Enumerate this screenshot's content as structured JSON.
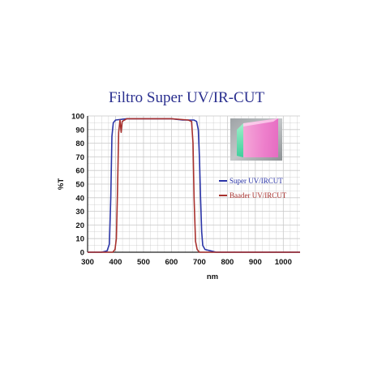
{
  "chart_data": {
    "type": "line",
    "title": "Filtro Super UV/IR-CUT",
    "xlabel": "nm",
    "ylabel": "%T",
    "xlim": [
      300,
      1060
    ],
    "ylim": [
      0,
      100
    ],
    "xticks": [
      300,
      400,
      500,
      600,
      700,
      800,
      900,
      1000
    ],
    "yticks": [
      0,
      10,
      20,
      30,
      40,
      50,
      60,
      70,
      80,
      90,
      100
    ],
    "grid": true,
    "legend_position": "right",
    "series": [
      {
        "name": "Super UV/IRCUT",
        "color": "#2b35a8",
        "points": [
          [
            300,
            0
          ],
          [
            350,
            0
          ],
          [
            370,
            1
          ],
          [
            378,
            6
          ],
          [
            383,
            40
          ],
          [
            387,
            85
          ],
          [
            392,
            95
          ],
          [
            400,
            97
          ],
          [
            440,
            98
          ],
          [
            500,
            98
          ],
          [
            560,
            98
          ],
          [
            600,
            98
          ],
          [
            640,
            97
          ],
          [
            680,
            97
          ],
          [
            690,
            96
          ],
          [
            696,
            90
          ],
          [
            700,
            70
          ],
          [
            704,
            40
          ],
          [
            708,
            15
          ],
          [
            712,
            5
          ],
          [
            720,
            2
          ],
          [
            740,
            1
          ],
          [
            760,
            0
          ],
          [
            1060,
            0
          ]
        ]
      },
      {
        "name": "Baader UV/IRCUT",
        "color": "#a8312e",
        "points": [
          [
            300,
            0
          ],
          [
            390,
            0
          ],
          [
            398,
            2
          ],
          [
            403,
            10
          ],
          [
            407,
            45
          ],
          [
            411,
            88
          ],
          [
            416,
            97
          ],
          [
            420,
            88
          ],
          [
            424,
            96
          ],
          [
            440,
            98
          ],
          [
            500,
            98
          ],
          [
            600,
            98
          ],
          [
            660,
            97
          ],
          [
            672,
            96
          ],
          [
            677,
            80
          ],
          [
            681,
            40
          ],
          [
            686,
            8
          ],
          [
            692,
            2
          ],
          [
            700,
            0
          ],
          [
            1060,
            0
          ]
        ]
      }
    ]
  },
  "colors": {
    "title": "#2a2f8f",
    "grid": "#c9c9c9",
    "axis": "#222222"
  },
  "inset_image": {
    "icon": "filter-glass-photo-icon"
  }
}
